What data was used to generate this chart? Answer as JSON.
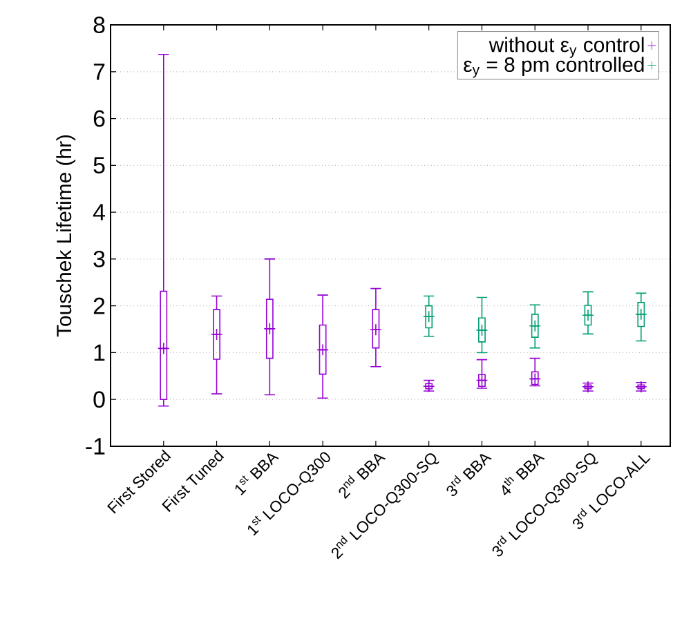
{
  "chart_data": {
    "type": "box",
    "ylabel": "Touschek Lifetime (hr)",
    "categories": [
      "First Stored",
      "First Tuned",
      "1$^{st}$ BBA",
      "1$^{st}$ LOCO-Q300",
      "2$^{nd}$ BBA",
      "2$^{nd}$ LOCO-Q300-SQ",
      "3$^{rd}$ BBA",
      "4$^{th}$ BBA",
      "3$^{rd}$ LOCO-Q300-SQ",
      "3$^{rd}$ LOCO-ALL"
    ],
    "series": [
      {
        "name": "without ε$_{y}$ control",
        "color": "#9400d3",
        "boxes": [
          {
            "low": -0.14,
            "q1": 0,
            "median": 1.09,
            "q3": 2.31,
            "high": 7.37
          },
          {
            "low": 0.12,
            "q1": 0.86,
            "median": 1.39,
            "q3": 1.92,
            "high": 2.21
          },
          {
            "low": 0.1,
            "q1": 0.88,
            "median": 1.51,
            "q3": 2.14,
            "high": 3.0
          },
          {
            "low": 0.03,
            "q1": 0.54,
            "median": 1.06,
            "q3": 1.59,
            "high": 2.23
          },
          {
            "low": 0.7,
            "q1": 1.1,
            "median": 1.49,
            "q3": 1.92,
            "high": 2.37
          },
          {
            "low": 0.18,
            "q1": 0.23,
            "median": 0.28,
            "q3": 0.34,
            "high": 0.41
          },
          {
            "low": 0.24,
            "q1": 0.28,
            "median": 0.41,
            "q3": 0.53,
            "high": 0.85
          },
          {
            "low": 0.29,
            "q1": 0.32,
            "median": 0.44,
            "q3": 0.59,
            "high": 0.88
          },
          {
            "low": 0.18,
            "q1": 0.23,
            "median": 0.27,
            "q3": 0.31,
            "high": 0.35
          },
          {
            "low": 0.18,
            "q1": 0.23,
            "median": 0.27,
            "q3": 0.31,
            "high": 0.36
          }
        ]
      },
      {
        "name": "ε$_{y}$ = 8 pm controlled",
        "color": "#009e73",
        "boxes": [
          null,
          null,
          null,
          null,
          null,
          {
            "low": 1.35,
            "q1": 1.53,
            "median": 1.77,
            "q3": 2.0,
            "high": 2.21
          },
          {
            "low": 1.0,
            "q1": 1.23,
            "median": 1.48,
            "q3": 1.74,
            "high": 2.18
          },
          {
            "low": 1.1,
            "q1": 1.33,
            "median": 1.57,
            "q3": 1.82,
            "high": 2.02
          },
          {
            "low": 1.4,
            "q1": 1.59,
            "median": 1.8,
            "q3": 2.01,
            "high": 2.3
          },
          {
            "low": 1.25,
            "q1": 1.56,
            "median": 1.82,
            "q3": 2.07,
            "high": 2.27
          }
        ]
      }
    ],
    "ylim": [
      -1,
      8
    ],
    "yticks": [
      -1,
      0,
      1,
      2,
      3,
      4,
      5,
      6,
      7,
      8
    ],
    "grid": "y",
    "legend": "top right",
    "marker": "cross"
  }
}
